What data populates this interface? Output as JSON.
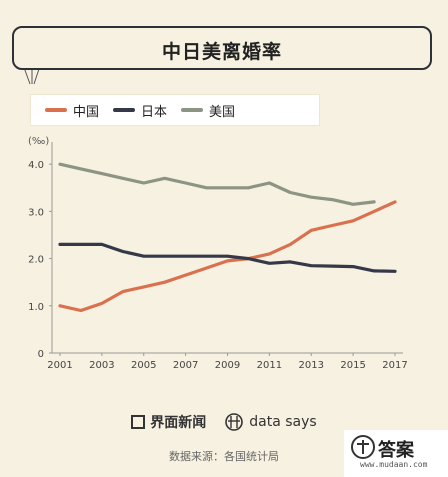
{
  "title": "中日美离婚率",
  "legend": [
    {
      "label": "中国",
      "color": "#d9704e"
    },
    {
      "label": "日本",
      "color": "#353848"
    },
    {
      "label": "美国",
      "color": "#8c9483"
    }
  ],
  "chart_data": {
    "type": "line",
    "unit": "(‰)",
    "x": [
      2001,
      2002,
      2003,
      2004,
      2005,
      2006,
      2007,
      2008,
      2009,
      2010,
      2011,
      2012,
      2013,
      2014,
      2015,
      2016,
      2017
    ],
    "x_ticks": [
      "2001",
      "2003",
      "2005",
      "2007",
      "2009",
      "2011",
      "2013",
      "2015",
      "2017"
    ],
    "y_ticks": [
      "0",
      "1.0",
      "2.0",
      "3.0",
      "4.0"
    ],
    "ylim": [
      0,
      4.3
    ],
    "grid": false,
    "series": [
      {
        "name": "中国",
        "color": "#d9704e",
        "values": [
          1.0,
          0.9,
          1.05,
          1.3,
          1.4,
          1.5,
          1.65,
          1.8,
          1.95,
          2.0,
          2.1,
          2.3,
          2.6,
          2.7,
          2.8,
          3.0,
          3.2
        ]
      },
      {
        "name": "日本",
        "color": "#353848",
        "values": [
          2.3,
          2.3,
          2.3,
          2.15,
          2.05,
          2.05,
          2.05,
          2.05,
          2.05,
          2.0,
          1.9,
          1.93,
          1.85,
          1.84,
          1.83,
          1.74,
          1.73
        ]
      },
      {
        "name": "美国",
        "color": "#8c9483",
        "values": [
          4.0,
          3.9,
          3.8,
          3.7,
          3.6,
          3.7,
          3.6,
          3.5,
          3.5,
          3.5,
          3.6,
          3.4,
          3.3,
          3.25,
          3.15,
          3.2,
          null
        ]
      }
    ]
  },
  "footer": {
    "brand1": "界面新闻",
    "brand2": "data says",
    "source": "数据来源：各国统计局"
  },
  "corner": {
    "title": "答案",
    "url": "www.mudaan.com"
  }
}
